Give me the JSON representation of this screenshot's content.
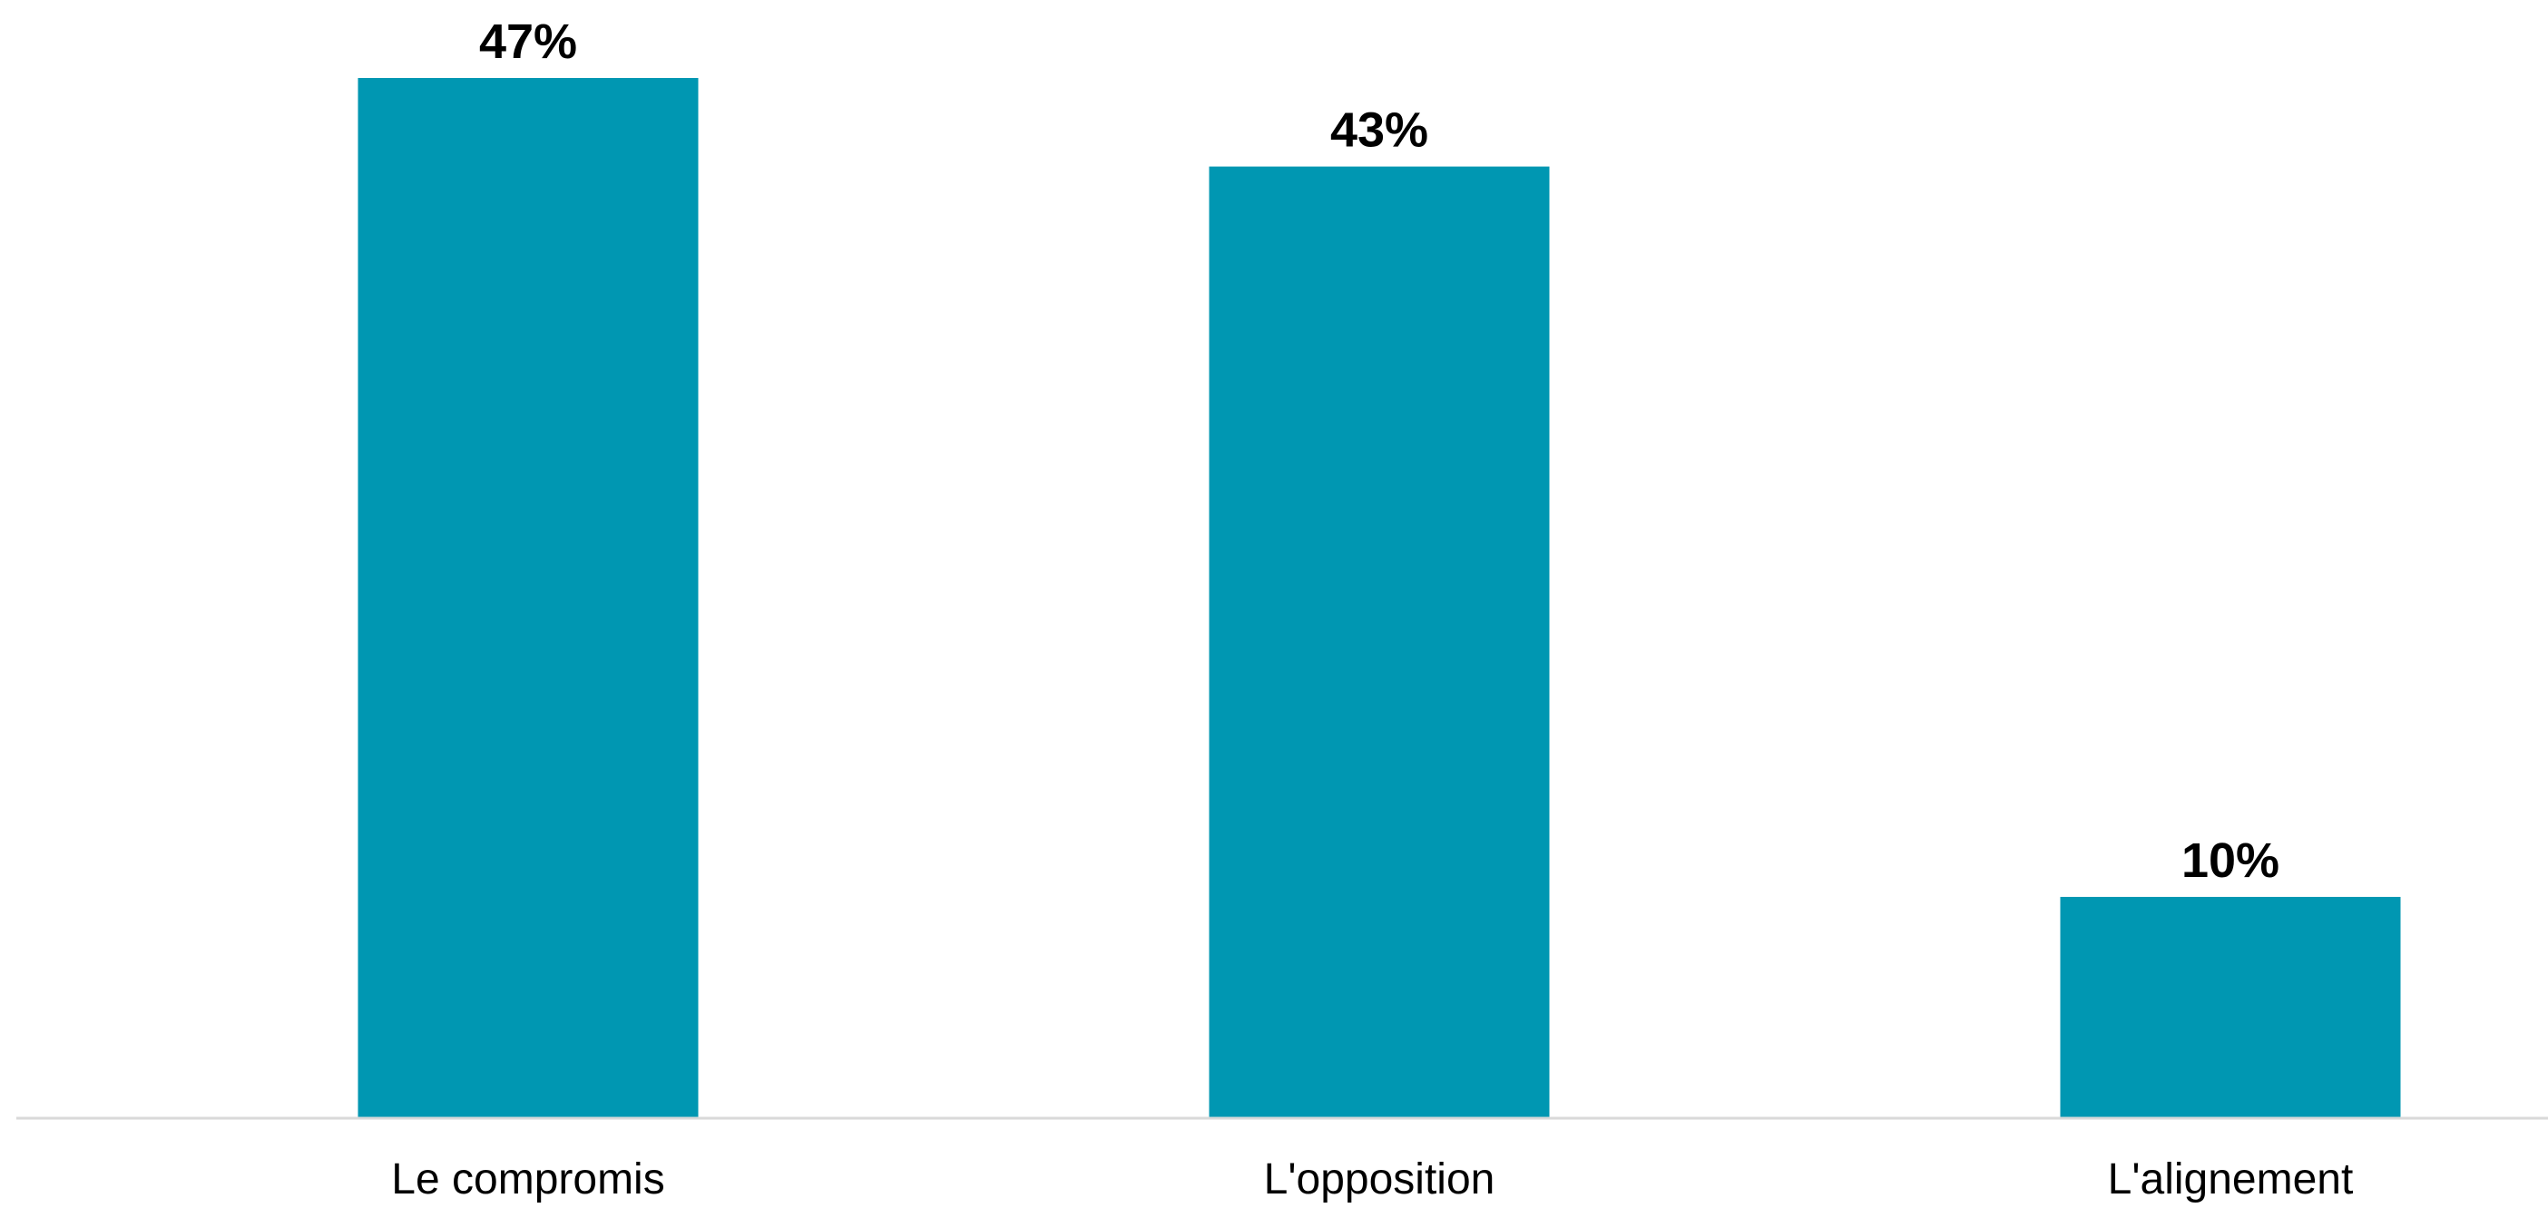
{
  "chart_data": {
    "type": "bar",
    "categories": [
      "Le compromis",
      "L'opposition",
      "L'alignement"
    ],
    "values": [
      47,
      43,
      10
    ],
    "data_labels": [
      "47%",
      "43%",
      "10%"
    ],
    "title": "",
    "xlabel": "",
    "ylabel": "",
    "ylim": [
      0,
      47
    ],
    "grid": false,
    "legend": "none",
    "colors": {
      "bar": "#0097B2",
      "baseline": "#D9D9D9",
      "text": "#000000"
    }
  }
}
